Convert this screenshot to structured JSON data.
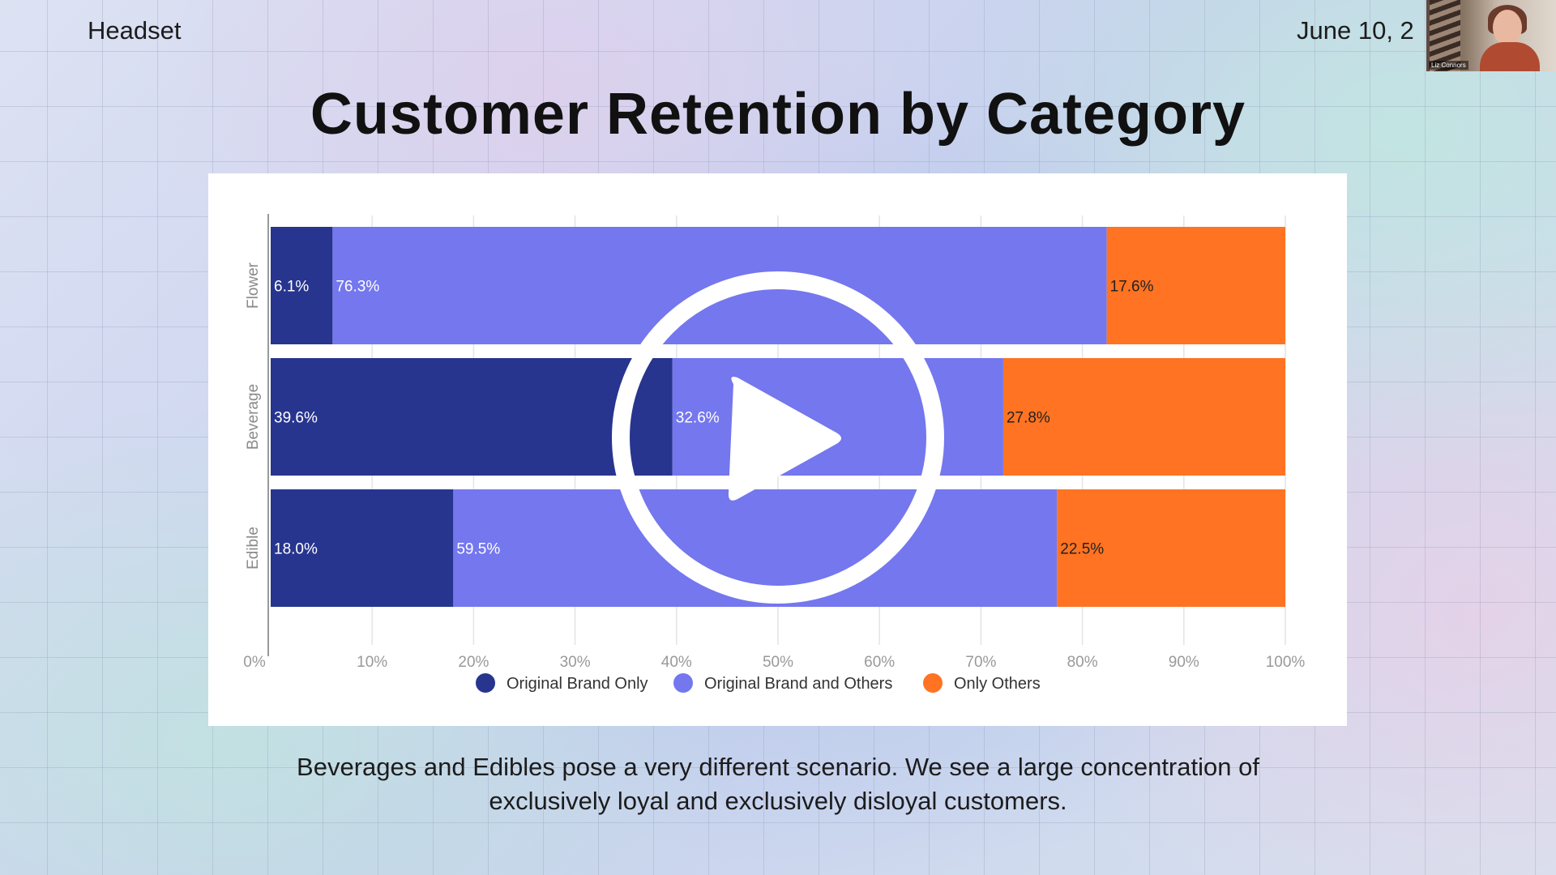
{
  "header": {
    "brand": "Headset",
    "date": "June 10, 2"
  },
  "webcam": {
    "participant_name": "Liz Connors"
  },
  "slide": {
    "title": "Customer Retention by Category",
    "caption_line1": "Beverages and Edibles pose a very different scenario.  We see a large concentration of",
    "caption_line2": "exclusively loyal and exclusively disloyal customers."
  },
  "colors": {
    "original_only": "#27358f",
    "original_and_others": "#7477ee",
    "only_others": "#ff7322"
  },
  "icons": {
    "play": "play-icon"
  },
  "chart_data": {
    "type": "bar",
    "orientation": "horizontal",
    "stacked": true,
    "categories": [
      "Flower",
      "Beverage",
      "Edible"
    ],
    "series": [
      {
        "name": "Original Brand Only",
        "values": [
          6.1,
          39.6,
          18.0
        ],
        "labels": [
          "6.1%",
          "39.6%",
          "18.0%"
        ]
      },
      {
        "name": "Original Brand and Others",
        "values": [
          76.3,
          32.6,
          59.5
        ],
        "labels": [
          "76.3%",
          "32.6%",
          "59.5%"
        ]
      },
      {
        "name": "Only Others",
        "values": [
          17.6,
          27.8,
          22.5
        ],
        "labels": [
          "17.6%",
          "27.8%",
          "22.5%"
        ]
      }
    ],
    "xlim": [
      0,
      100
    ],
    "xticks": [
      "0%",
      "10%",
      "20%",
      "30%",
      "40%",
      "50%",
      "60%",
      "70%",
      "80%",
      "90%",
      "100%"
    ],
    "grid": "vertical",
    "legend": "bottom"
  }
}
